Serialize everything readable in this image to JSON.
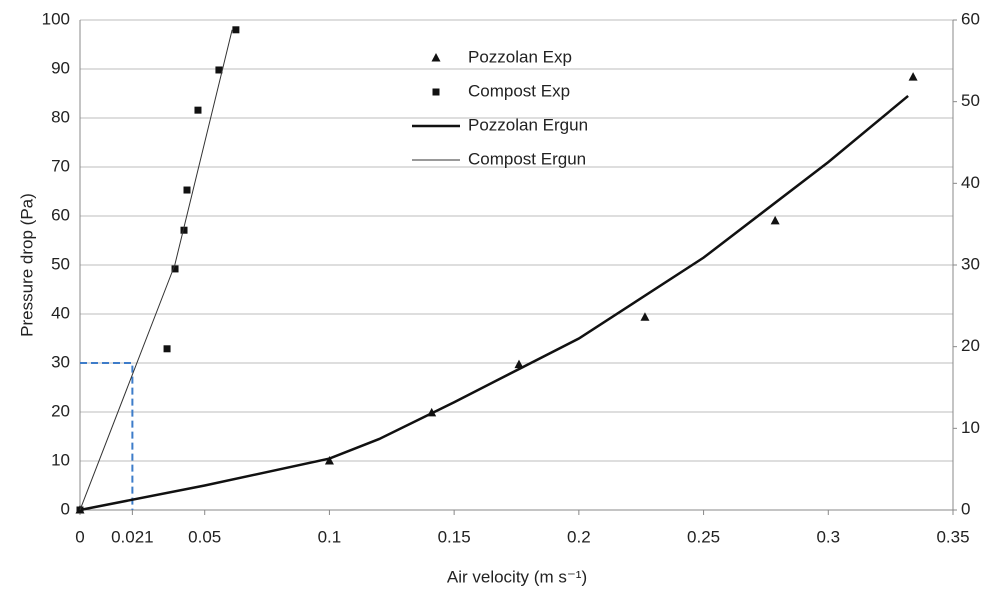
{
  "chart_data": {
    "type": "scatter-line",
    "x_label": "Air velocity (m s⁻¹)",
    "y_label": "Pressure drop (Pa)",
    "xlim": [
      0,
      0.35
    ],
    "xticks": [
      0,
      0.021,
      0.05,
      0.1,
      0.15,
      0.2,
      0.25,
      0.3,
      0.35
    ],
    "ylim": [
      0,
      100
    ],
    "yticks": [
      0,
      10,
      20,
      30,
      40,
      50,
      60,
      70,
      80,
      90,
      100
    ],
    "y2lim": [
      0,
      60
    ],
    "y2ticks": [
      0,
      10,
      20,
      30,
      40,
      50,
      60
    ],
    "grid": true,
    "legend": "top",
    "series": [
      {
        "name": "Pozzolan Exp",
        "color": "#111111",
        "marker": "triangle",
        "axis": "y2",
        "x": [
          0,
          0.1,
          0.141,
          0.176,
          0.2265,
          0.2787,
          0.334
        ],
        "values": [
          0,
          6,
          11.9,
          17.8,
          23.6,
          35.4,
          53
        ]
      },
      {
        "name": "Compost Exp",
        "color": "#111111",
        "marker": "square",
        "x": [
          0,
          0.0349,
          0.0381,
          0.0417,
          0.0429,
          0.0473,
          0.0557,
          0.0625
        ],
        "values": [
          0,
          32.9,
          49.2,
          57.1,
          65.3,
          81.6,
          89.8,
          98
        ]
      },
      {
        "name": "Pozzolan Ergun",
        "color": "#111111",
        "line_width": 2.5,
        "axis": "y2",
        "x": [
          0,
          0.05,
          0.1,
          0.12,
          0.15,
          0.2,
          0.25,
          0.3,
          0.332
        ],
        "values": [
          0,
          3,
          6.3,
          8.7,
          13.2,
          21,
          30.9,
          42.6,
          50.7
        ]
      },
      {
        "name": "Compost Ergun",
        "color": "#333333",
        "line_width": 1,
        "x": [
          0,
          0.038,
          0.061
        ],
        "values": [
          0,
          50,
          98
        ]
      }
    ]
  }
}
